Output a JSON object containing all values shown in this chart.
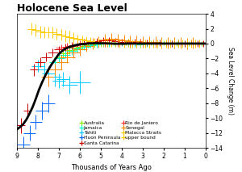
{
  "title": "Holocene Sea Level",
  "xlabel": "Thousands of Years Ago",
  "ylabel": "Sea Level Change (m)",
  "xlim": [
    9,
    0
  ],
  "ylim": [
    -14,
    4
  ],
  "yticks": [
    4,
    2,
    0,
    -2,
    -4,
    -6,
    -8,
    -10,
    -12,
    -14
  ],
  "xticks": [
    9,
    8,
    7,
    6,
    5,
    4,
    3,
    2,
    1,
    0
  ],
  "curve_x": [
    9.0,
    8.85,
    8.7,
    8.55,
    8.4,
    8.25,
    8.1,
    7.95,
    7.8,
    7.65,
    7.5,
    7.35,
    7.2,
    7.1,
    7.0,
    6.85,
    6.7,
    6.5,
    6.3,
    6.1,
    5.9,
    5.7,
    5.5,
    5.3,
    5.1,
    4.9,
    4.7,
    4.5,
    4.3,
    4.1,
    3.9,
    3.7,
    3.5,
    3.3,
    3.1,
    2.9,
    2.7,
    2.5,
    2.3,
    2.1,
    1.9,
    1.7,
    1.5,
    1.3,
    1.1,
    0.9,
    0.7,
    0.5,
    0.3,
    0.1,
    0.0
  ],
  "curve_y": [
    -11.5,
    -11.2,
    -10.8,
    -10.2,
    -9.4,
    -8.5,
    -7.4,
    -6.2,
    -5.2,
    -4.3,
    -3.5,
    -2.8,
    -2.2,
    -1.8,
    -1.4,
    -1.0,
    -0.7,
    -0.45,
    -0.28,
    -0.15,
    -0.08,
    -0.02,
    0.02,
    0.05,
    0.05,
    0.03,
    0.02,
    0.0,
    -0.02,
    -0.02,
    -0.02,
    0.0,
    0.0,
    0.0,
    0.0,
    0.0,
    0.0,
    0.0,
    0.0,
    0.0,
    0.0,
    0.0,
    0.0,
    0.0,
    0.0,
    0.0,
    0.0,
    0.0,
    0.0,
    0.0,
    0.0
  ],
  "series": [
    {
      "label": "Australia",
      "color": "#88ee00",
      "points": [
        [
          7.0,
          -1.8,
          0.25,
          0.5
        ],
        [
          6.8,
          -1.3,
          0.25,
          0.5
        ],
        [
          6.5,
          -0.9,
          0.25,
          0.5
        ],
        [
          6.2,
          -0.6,
          0.25,
          0.4
        ],
        [
          5.9,
          -0.4,
          0.25,
          0.4
        ],
        [
          5.6,
          -0.2,
          0.25,
          0.4
        ],
        [
          5.3,
          -0.1,
          0.25,
          0.4
        ],
        [
          5.0,
          0.0,
          0.25,
          0.4
        ],
        [
          4.7,
          0.0,
          0.25,
          0.4
        ],
        [
          4.4,
          0.1,
          0.2,
          0.3
        ],
        [
          4.1,
          0.0,
          0.2,
          0.3
        ],
        [
          3.8,
          0.1,
          0.2,
          0.3
        ],
        [
          3.5,
          0.0,
          0.2,
          0.3
        ],
        [
          3.2,
          0.1,
          0.2,
          0.3
        ],
        [
          2.9,
          0.0,
          0.2,
          0.3
        ],
        [
          2.6,
          0.1,
          0.2,
          0.3
        ],
        [
          2.3,
          0.0,
          0.2,
          0.3
        ],
        [
          2.0,
          0.1,
          0.2,
          0.3
        ],
        [
          1.7,
          0.0,
          0.2,
          0.3
        ],
        [
          1.4,
          0.0,
          0.2,
          0.3
        ],
        [
          1.1,
          0.1,
          0.2,
          0.3
        ],
        [
          0.8,
          0.0,
          0.2,
          0.3
        ],
        [
          0.5,
          0.0,
          0.2,
          0.3
        ],
        [
          0.2,
          0.0,
          0.2,
          0.3
        ]
      ]
    },
    {
      "label": "Jamaica",
      "color": "#00ffcc",
      "points": [
        [
          7.2,
          -2.5,
          0.25,
          0.6
        ],
        [
          7.0,
          -2.0,
          0.25,
          0.6
        ],
        [
          6.7,
          -1.5,
          0.25,
          0.5
        ],
        [
          6.4,
          -1.0,
          0.25,
          0.5
        ],
        [
          6.1,
          -0.7,
          0.25,
          0.5
        ],
        [
          5.8,
          -0.4,
          0.25,
          0.5
        ],
        [
          5.5,
          -0.2,
          0.25,
          0.4
        ],
        [
          5.2,
          -0.1,
          0.25,
          0.4
        ],
        [
          4.9,
          0.0,
          0.25,
          0.4
        ],
        [
          4.6,
          0.0,
          0.2,
          0.4
        ],
        [
          4.3,
          0.0,
          0.2,
          0.4
        ],
        [
          4.0,
          0.1,
          0.2,
          0.4
        ],
        [
          3.7,
          0.0,
          0.2,
          0.4
        ],
        [
          3.4,
          0.0,
          0.2,
          0.4
        ],
        [
          3.1,
          -0.1,
          0.2,
          0.4
        ],
        [
          2.8,
          0.0,
          0.2,
          0.4
        ],
        [
          2.5,
          0.0,
          0.2,
          0.4
        ],
        [
          2.2,
          0.1,
          0.2,
          0.4
        ],
        [
          1.9,
          0.0,
          0.2,
          0.4
        ],
        [
          1.6,
          0.0,
          0.2,
          0.4
        ],
        [
          1.3,
          0.1,
          0.2,
          0.4
        ],
        [
          1.0,
          0.0,
          0.2,
          0.4
        ]
      ]
    },
    {
      "label": "Tahiti",
      "color": "#00ccff",
      "points": [
        [
          8.0,
          -3.0,
          0.3,
          0.8
        ],
        [
          7.7,
          -3.5,
          0.3,
          1.0
        ],
        [
          7.5,
          -4.0,
          0.3,
          1.0
        ],
        [
          7.2,
          -4.5,
          0.3,
          1.2
        ],
        [
          7.0,
          -5.0,
          0.3,
          1.0
        ],
        [
          6.8,
          -4.8,
          0.3,
          1.0
        ],
        [
          6.5,
          -5.5,
          0.4,
          1.2
        ],
        [
          6.0,
          -5.2,
          0.5,
          1.5
        ]
      ]
    },
    {
      "label": "Huon Peninsula",
      "color": "#0066ff",
      "points": [
        [
          8.7,
          -13.5,
          0.3,
          1.0
        ],
        [
          8.4,
          -12.0,
          0.3,
          1.0
        ],
        [
          8.1,
          -10.5,
          0.3,
          1.0
        ],
        [
          7.8,
          -9.0,
          0.3,
          1.2
        ],
        [
          7.5,
          -8.0,
          0.3,
          1.2
        ]
      ]
    },
    {
      "label": "Santa Catarina",
      "color": "#cc0000",
      "points": [
        [
          8.8,
          -11.0,
          0.2,
          1.0
        ],
        [
          8.5,
          -9.0,
          0.2,
          1.0
        ],
        [
          8.2,
          -3.5,
          0.2,
          0.8
        ],
        [
          7.9,
          -2.5,
          0.25,
          0.6
        ],
        [
          7.6,
          -1.8,
          0.25,
          0.6
        ],
        [
          7.3,
          -1.2,
          0.25,
          0.5
        ],
        [
          7.0,
          -0.8,
          0.25,
          0.5
        ],
        [
          6.7,
          -0.5,
          0.25,
          0.5
        ],
        [
          6.4,
          -0.3,
          0.25,
          0.5
        ],
        [
          6.1,
          -0.1,
          0.25,
          0.5
        ],
        [
          5.8,
          0.1,
          0.25,
          0.5
        ],
        [
          5.5,
          0.2,
          0.25,
          0.5
        ],
        [
          5.2,
          0.3,
          0.25,
          0.5
        ],
        [
          4.9,
          0.4,
          0.25,
          0.5
        ],
        [
          4.6,
          0.4,
          0.25,
          0.5
        ],
        [
          4.3,
          0.3,
          0.2,
          0.4
        ],
        [
          4.0,
          0.2,
          0.2,
          0.4
        ],
        [
          3.7,
          0.2,
          0.2,
          0.4
        ],
        [
          3.4,
          0.2,
          0.2,
          0.4
        ],
        [
          3.1,
          0.2,
          0.2,
          0.4
        ],
        [
          2.8,
          0.1,
          0.2,
          0.4
        ],
        [
          2.5,
          0.1,
          0.2,
          0.4
        ],
        [
          2.2,
          0.1,
          0.2,
          0.4
        ],
        [
          1.9,
          0.0,
          0.2,
          0.4
        ],
        [
          1.6,
          0.0,
          0.2,
          0.4
        ],
        [
          1.3,
          0.1,
          0.2,
          0.4
        ],
        [
          1.0,
          0.0,
          0.2,
          0.4
        ],
        [
          0.7,
          0.1,
          0.2,
          0.4
        ],
        [
          0.4,
          0.0,
          0.2,
          0.4
        ],
        [
          0.1,
          0.0,
          0.2,
          0.4
        ]
      ]
    },
    {
      "label": "Rio de Janiero",
      "color": "#ff3333",
      "points": [
        [
          6.9,
          -0.6,
          0.25,
          0.5
        ],
        [
          6.6,
          -0.4,
          0.25,
          0.5
        ],
        [
          6.3,
          -0.2,
          0.25,
          0.5
        ],
        [
          6.0,
          -0.1,
          0.25,
          0.5
        ],
        [
          5.7,
          0.0,
          0.25,
          0.5
        ],
        [
          5.4,
          0.0,
          0.25,
          0.5
        ],
        [
          5.1,
          0.1,
          0.25,
          0.5
        ],
        [
          4.8,
          0.1,
          0.25,
          0.5
        ],
        [
          4.5,
          0.1,
          0.2,
          0.4
        ],
        [
          4.2,
          0.0,
          0.2,
          0.4
        ],
        [
          3.9,
          0.1,
          0.2,
          0.4
        ],
        [
          3.6,
          0.1,
          0.2,
          0.4
        ],
        [
          3.3,
          0.0,
          0.2,
          0.4
        ],
        [
          3.0,
          0.1,
          0.2,
          0.4
        ],
        [
          2.7,
          0.1,
          0.2,
          0.4
        ],
        [
          2.4,
          0.0,
          0.2,
          0.4
        ],
        [
          2.1,
          0.1,
          0.2,
          0.4
        ],
        [
          1.8,
          0.0,
          0.2,
          0.4
        ],
        [
          1.5,
          0.1,
          0.2,
          0.4
        ],
        [
          1.2,
          0.0,
          0.2,
          0.4
        ],
        [
          0.9,
          0.0,
          0.2,
          0.4
        ],
        [
          0.6,
          0.1,
          0.2,
          0.4
        ],
        [
          0.3,
          0.0,
          0.2,
          0.4
        ]
      ]
    },
    {
      "label": "Senegal",
      "color": "#ff8800",
      "points": [
        [
          7.5,
          -4.5,
          0.35,
          1.2
        ],
        [
          7.2,
          -3.5,
          0.35,
          1.0
        ],
        [
          6.9,
          -2.5,
          0.35,
          1.0
        ],
        [
          6.6,
          -1.8,
          0.35,
          0.8
        ],
        [
          6.3,
          -1.2,
          0.35,
          0.8
        ],
        [
          6.0,
          -0.8,
          0.35,
          0.8
        ],
        [
          5.7,
          -0.3,
          0.35,
          0.8
        ],
        [
          5.4,
          0.0,
          0.35,
          0.8
        ],
        [
          5.1,
          0.2,
          0.35,
          0.8
        ],
        [
          4.8,
          0.5,
          0.35,
          0.8
        ],
        [
          4.5,
          0.6,
          0.35,
          0.8
        ],
        [
          4.2,
          0.5,
          0.3,
          0.8
        ],
        [
          3.9,
          0.4,
          0.3,
          0.8
        ],
        [
          3.6,
          0.3,
          0.3,
          0.8
        ],
        [
          3.3,
          0.3,
          0.3,
          0.8
        ],
        [
          3.0,
          0.2,
          0.3,
          0.8
        ],
        [
          2.7,
          0.2,
          0.3,
          0.8
        ],
        [
          2.4,
          0.2,
          0.3,
          0.8
        ],
        [
          2.1,
          0.1,
          0.3,
          0.8
        ],
        [
          1.8,
          0.1,
          0.3,
          0.8
        ],
        [
          1.5,
          0.1,
          0.3,
          0.8
        ],
        [
          1.2,
          0.1,
          0.3,
          0.8
        ],
        [
          0.9,
          0.0,
          0.3,
          0.8
        ],
        [
          0.6,
          0.1,
          0.3,
          0.8
        ]
      ]
    },
    {
      "label": "Malacca Straits",
      "color": "#ffcc00",
      "points": [
        [
          8.3,
          2.0,
          0.2,
          0.8
        ],
        [
          8.1,
          1.8,
          0.2,
          0.8
        ],
        [
          7.9,
          1.6,
          0.2,
          0.8
        ],
        [
          7.7,
          1.5,
          0.2,
          0.8
        ],
        [
          7.5,
          1.5,
          0.2,
          0.8
        ],
        [
          7.3,
          1.5,
          0.2,
          0.8
        ],
        [
          7.1,
          1.3,
          0.2,
          0.8
        ],
        [
          6.9,
          1.2,
          0.2,
          0.8
        ],
        [
          6.7,
          1.0,
          0.2,
          0.8
        ],
        [
          6.5,
          0.9,
          0.2,
          0.8
        ],
        [
          6.3,
          0.7,
          0.2,
          0.8
        ],
        [
          6.1,
          0.6,
          0.2,
          0.6
        ],
        [
          5.9,
          0.5,
          0.2,
          0.6
        ],
        [
          5.7,
          0.4,
          0.2,
          0.6
        ],
        [
          5.5,
          0.3,
          0.2,
          0.6
        ],
        [
          5.3,
          0.2,
          0.2,
          0.5
        ],
        [
          5.1,
          0.2,
          0.2,
          0.5
        ],
        [
          4.9,
          0.1,
          0.2,
          0.5
        ],
        [
          4.7,
          0.1,
          0.2,
          0.5
        ],
        [
          4.5,
          0.1,
          0.2,
          0.5
        ],
        [
          4.3,
          0.1,
          0.2,
          0.5
        ],
        [
          4.1,
          0.0,
          0.2,
          0.5
        ],
        [
          3.9,
          0.0,
          0.2,
          0.5
        ],
        [
          3.7,
          0.1,
          0.2,
          0.5
        ],
        [
          3.5,
          0.0,
          0.2,
          0.5
        ],
        [
          3.3,
          0.0,
          0.2,
          0.5
        ],
        [
          3.1,
          0.0,
          0.2,
          0.5
        ],
        [
          2.9,
          0.0,
          0.2,
          0.5
        ],
        [
          2.7,
          0.0,
          0.2,
          0.5
        ],
        [
          2.5,
          0.0,
          0.2,
          0.5
        ],
        [
          2.3,
          0.0,
          0.2,
          0.5
        ],
        [
          2.1,
          0.0,
          0.2,
          0.5
        ],
        [
          1.9,
          0.0,
          0.2,
          0.5
        ],
        [
          1.7,
          0.0,
          0.2,
          0.5
        ],
        [
          1.5,
          0.0,
          0.2,
          0.5
        ],
        [
          1.3,
          0.0,
          0.2,
          0.5
        ],
        [
          1.1,
          0.0,
          0.2,
          0.5
        ],
        [
          0.9,
          0.0,
          0.2,
          0.5
        ],
        [
          0.7,
          0.0,
          0.2,
          0.5
        ],
        [
          0.5,
          0.0,
          0.2,
          0.5
        ],
        [
          0.3,
          0.0,
          0.2,
          0.5
        ]
      ]
    }
  ],
  "legend_entries_left": [
    {
      "label": "Australia",
      "color": "#88ee00"
    },
    {
      "label": "Jamaica",
      "color": "#00ffcc"
    },
    {
      "label": "Tahiti",
      "color": "#00ccff"
    },
    {
      "label": "Huon Peninsula",
      "color": "#0066ff"
    }
  ],
  "legend_entries_right": [
    {
      "label": "Santa Catarina",
      "color": "#cc0000"
    },
    {
      "label": "Rio de Janiero",
      "color": "#ff3333"
    },
    {
      "label": "Senegal",
      "color": "#ff8800"
    },
    {
      "label": "Malacca Straits",
      "color": "#ffcc00"
    },
    {
      "label": "upper bound",
      "color": "#ffcc00"
    }
  ]
}
